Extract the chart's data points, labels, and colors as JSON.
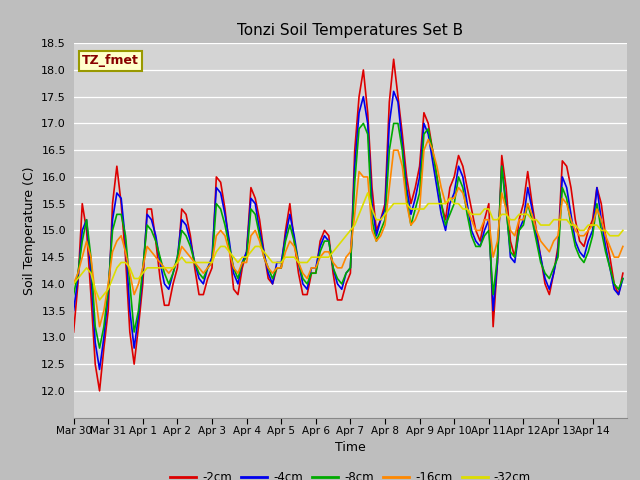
{
  "title": "Tonzi Soil Temperatures Set B",
  "xlabel": "Time",
  "ylabel": "Soil Temperature (C)",
  "ylim": [
    11.5,
    18.5
  ],
  "yticks": [
    12.0,
    12.5,
    13.0,
    13.5,
    14.0,
    14.5,
    15.0,
    15.5,
    16.0,
    16.5,
    17.0,
    17.5,
    18.0,
    18.5
  ],
  "fig_bg_color": "#c8c8c8",
  "plot_bg_color": "#d8d8d8",
  "legend_label": "TZ_fmet",
  "series_keys": [
    "2cm",
    "4cm",
    "8cm",
    "16cm",
    "32cm"
  ],
  "series": {
    "2cm": {
      "color": "#dd0000",
      "label": "-2cm"
    },
    "4cm": {
      "color": "#0000ee",
      "label": "-4cm"
    },
    "8cm": {
      "color": "#00aa00",
      "label": "-8cm"
    },
    "16cm": {
      "color": "#ff8800",
      "label": "-16cm"
    },
    "32cm": {
      "color": "#dddd00",
      "label": "-32cm"
    }
  },
  "xtick_labels": [
    "Mar 30",
    "Mar 31",
    "Apr 1",
    "Apr 2",
    "Apr 3",
    "Apr 4",
    "Apr 5",
    "Apr 6",
    "Apr 7",
    "Apr 8",
    "Apr 9",
    "Apr 10",
    "Apr 11",
    "Apr 12",
    "Apr 13",
    "Apr 14"
  ],
  "n_points_per_day": 8,
  "data_2cm": [
    13.1,
    14.0,
    15.5,
    15.0,
    13.8,
    12.5,
    12.0,
    12.8,
    13.5,
    15.5,
    16.2,
    15.5,
    14.5,
    13.1,
    12.5,
    13.2,
    14.0,
    15.4,
    15.4,
    14.8,
    14.1,
    13.6,
    13.6,
    14.0,
    14.3,
    15.4,
    15.3,
    14.9,
    14.3,
    13.8,
    13.8,
    14.1,
    14.3,
    16.0,
    15.9,
    15.4,
    14.7,
    13.9,
    13.8,
    14.3,
    14.6,
    15.8,
    15.6,
    15.2,
    14.6,
    14.1,
    14.0,
    14.3,
    14.3,
    15.0,
    15.5,
    14.8,
    14.2,
    13.8,
    13.8,
    14.2,
    14.2,
    14.8,
    15.0,
    14.9,
    14.2,
    13.7,
    13.7,
    14.0,
    14.2,
    16.5,
    17.5,
    18.0,
    17.2,
    15.8,
    15.0,
    15.2,
    15.5,
    17.4,
    18.2,
    17.5,
    16.8,
    16.0,
    15.5,
    15.8,
    16.2,
    17.2,
    17.0,
    16.5,
    16.0,
    15.5,
    15.2,
    15.8,
    16.0,
    16.4,
    16.2,
    15.8,
    15.4,
    15.0,
    14.8,
    15.2,
    15.5,
    13.2,
    14.4,
    16.4,
    15.8,
    14.8,
    14.5,
    15.2,
    15.5,
    16.1,
    15.5,
    15.0,
    14.5,
    14.0,
    13.8,
    14.2,
    14.7,
    16.3,
    16.2,
    15.8,
    15.2,
    14.8,
    14.7,
    15.0,
    15.2,
    15.8,
    15.5,
    14.9,
    14.5,
    14.0,
    13.8,
    14.2
  ],
  "data_4cm": [
    13.5,
    14.1,
    15.0,
    15.2,
    14.2,
    12.9,
    12.4,
    13.0,
    13.8,
    15.2,
    15.7,
    15.6,
    14.8,
    13.5,
    12.8,
    13.4,
    14.2,
    15.3,
    15.2,
    14.9,
    14.4,
    14.0,
    13.9,
    14.2,
    14.5,
    15.2,
    15.1,
    14.8,
    14.4,
    14.1,
    14.0,
    14.3,
    14.5,
    15.8,
    15.7,
    15.3,
    14.8,
    14.2,
    14.0,
    14.4,
    14.6,
    15.6,
    15.5,
    15.0,
    14.6,
    14.2,
    14.0,
    14.4,
    14.4,
    14.9,
    15.3,
    14.9,
    14.4,
    14.0,
    13.9,
    14.3,
    14.3,
    14.7,
    14.9,
    14.8,
    14.3,
    14.0,
    13.9,
    14.2,
    14.3,
    16.2,
    17.2,
    17.5,
    17.0,
    15.5,
    14.9,
    15.2,
    15.4,
    17.0,
    17.6,
    17.4,
    16.6,
    15.8,
    15.3,
    15.6,
    16.0,
    17.0,
    16.8,
    16.3,
    15.8,
    15.3,
    15.0,
    15.5,
    15.7,
    16.2,
    16.0,
    15.5,
    15.0,
    14.8,
    14.7,
    15.0,
    15.2,
    13.5,
    14.4,
    16.2,
    15.5,
    14.5,
    14.4,
    15.0,
    15.2,
    15.8,
    15.4,
    14.9,
    14.5,
    14.1,
    13.9,
    14.2,
    14.6,
    16.0,
    15.8,
    15.3,
    14.8,
    14.6,
    14.5,
    14.8,
    15.0,
    15.8,
    15.2,
    14.7,
    14.3,
    13.9,
    13.8,
    14.1
  ],
  "data_8cm": [
    13.8,
    14.2,
    14.8,
    15.2,
    14.5,
    13.2,
    12.8,
    13.2,
    13.9,
    15.0,
    15.3,
    15.3,
    14.9,
    14.0,
    13.1,
    13.5,
    14.3,
    15.1,
    15.0,
    14.8,
    14.5,
    14.2,
    14.0,
    14.2,
    14.5,
    15.0,
    14.9,
    14.7,
    14.4,
    14.2,
    14.1,
    14.3,
    14.4,
    15.5,
    15.4,
    15.1,
    14.7,
    14.3,
    14.1,
    14.4,
    14.5,
    15.4,
    15.3,
    14.9,
    14.5,
    14.3,
    14.1,
    14.3,
    14.3,
    14.8,
    15.1,
    14.8,
    14.4,
    14.1,
    14.0,
    14.2,
    14.2,
    14.6,
    14.8,
    14.8,
    14.3,
    14.1,
    14.0,
    14.2,
    14.3,
    15.9,
    16.9,
    17.0,
    16.8,
    15.2,
    14.8,
    15.0,
    15.2,
    16.5,
    17.0,
    17.0,
    16.5,
    15.6,
    15.1,
    15.4,
    15.7,
    16.8,
    16.9,
    16.5,
    16.0,
    15.5,
    15.1,
    15.3,
    15.5,
    16.0,
    15.8,
    15.3,
    14.9,
    14.7,
    14.7,
    14.9,
    15.0,
    13.8,
    14.5,
    16.2,
    15.4,
    14.6,
    14.5,
    15.0,
    15.1,
    15.5,
    15.2,
    14.8,
    14.4,
    14.2,
    14.1,
    14.3,
    14.5,
    15.8,
    15.6,
    15.1,
    14.7,
    14.5,
    14.4,
    14.6,
    14.9,
    15.5,
    15.0,
    14.6,
    14.3,
    14.0,
    13.9,
    14.1
  ],
  "data_16cm": [
    14.0,
    14.2,
    14.5,
    14.8,
    14.5,
    13.8,
    13.2,
    13.5,
    14.0,
    14.6,
    14.8,
    14.9,
    14.6,
    14.2,
    13.8,
    14.0,
    14.3,
    14.7,
    14.6,
    14.5,
    14.4,
    14.3,
    14.2,
    14.3,
    14.4,
    14.7,
    14.6,
    14.5,
    14.4,
    14.3,
    14.2,
    14.3,
    14.4,
    14.9,
    15.0,
    14.9,
    14.6,
    14.3,
    14.2,
    14.4,
    14.4,
    14.9,
    15.0,
    14.8,
    14.5,
    14.3,
    14.2,
    14.3,
    14.3,
    14.6,
    14.8,
    14.7,
    14.4,
    14.2,
    14.1,
    14.3,
    14.3,
    14.5,
    14.6,
    14.6,
    14.4,
    14.3,
    14.3,
    14.5,
    14.6,
    15.3,
    16.1,
    16.0,
    16.0,
    15.0,
    14.8,
    14.9,
    15.1,
    15.8,
    16.5,
    16.5,
    16.2,
    15.5,
    15.1,
    15.2,
    15.4,
    16.5,
    16.7,
    16.5,
    16.2,
    15.8,
    15.5,
    15.6,
    15.6,
    15.8,
    15.7,
    15.4,
    15.2,
    15.0,
    15.0,
    15.2,
    15.2,
    14.5,
    14.8,
    15.7,
    15.4,
    15.0,
    14.9,
    15.2,
    15.2,
    15.5,
    15.3,
    15.0,
    14.8,
    14.7,
    14.6,
    14.8,
    14.9,
    15.6,
    15.5,
    15.2,
    15.0,
    14.9,
    14.9,
    15.0,
    15.1,
    15.4,
    15.2,
    14.9,
    14.7,
    14.5,
    14.5,
    14.7
  ],
  "data_32cm": [
    14.0,
    14.1,
    14.2,
    14.3,
    14.2,
    13.9,
    13.7,
    13.8,
    13.9,
    14.1,
    14.3,
    14.4,
    14.4,
    14.3,
    14.1,
    14.1,
    14.2,
    14.3,
    14.3,
    14.3,
    14.3,
    14.3,
    14.3,
    14.3,
    14.4,
    14.5,
    14.4,
    14.4,
    14.4,
    14.4,
    14.4,
    14.4,
    14.4,
    14.6,
    14.7,
    14.7,
    14.6,
    14.5,
    14.4,
    14.5,
    14.5,
    14.6,
    14.7,
    14.7,
    14.6,
    14.5,
    14.4,
    14.4,
    14.4,
    14.5,
    14.5,
    14.5,
    14.4,
    14.4,
    14.4,
    14.5,
    14.5,
    14.5,
    14.5,
    14.5,
    14.6,
    14.7,
    14.8,
    14.9,
    15.0,
    15.1,
    15.3,
    15.5,
    15.7,
    15.4,
    15.2,
    15.2,
    15.3,
    15.4,
    15.5,
    15.5,
    15.5,
    15.5,
    15.4,
    15.4,
    15.4,
    15.4,
    15.5,
    15.5,
    15.5,
    15.5,
    15.5,
    15.6,
    15.5,
    15.5,
    15.4,
    15.4,
    15.3,
    15.3,
    15.3,
    15.4,
    15.4,
    15.2,
    15.2,
    15.3,
    15.3,
    15.2,
    15.2,
    15.3,
    15.3,
    15.3,
    15.2,
    15.2,
    15.1,
    15.1,
    15.1,
    15.2,
    15.2,
    15.2,
    15.2,
    15.1,
    15.1,
    15.0,
    15.0,
    15.1,
    15.1,
    15.1,
    15.0,
    15.0,
    14.9,
    14.9,
    14.9,
    15.0
  ]
}
